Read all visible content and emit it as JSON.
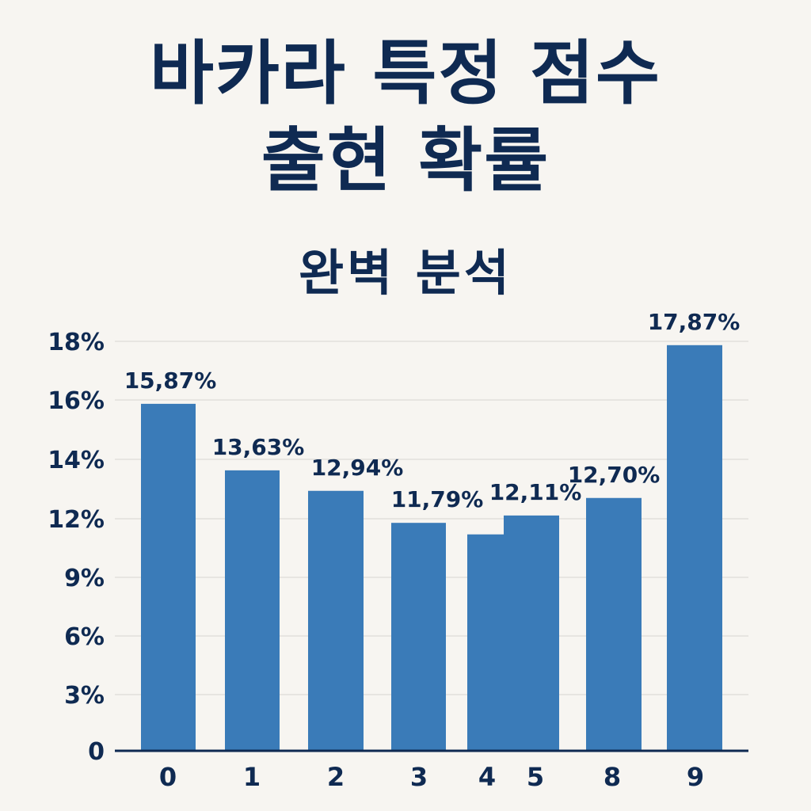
{
  "title": {
    "line1": "바카라 특정 점수",
    "line2": "출현 확률"
  },
  "subtitle": "완벽 분석",
  "colors": {
    "bar": "#3a7bb8",
    "text": "#0f2a52",
    "grid": "#e2e0dc",
    "axis": "#0f2a52",
    "background": "#f7f5f1"
  },
  "chart_data": {
    "type": "bar",
    "categories": [
      "0",
      "1",
      "2",
      "3",
      "4",
      "5",
      "8",
      "9"
    ],
    "values": [
      15.87,
      13.63,
      12.94,
      11.79,
      11.2,
      12.11,
      12.7,
      17.87
    ],
    "data_labels": [
      "15,87%",
      "13,63%",
      "12,94%",
      "11,79%",
      "",
      "12,11%",
      "12,70%",
      "17,87%"
    ],
    "y_ticks": [
      "0",
      "3%",
      "6%",
      "9%",
      "12%",
      "14%",
      "16%",
      "18%"
    ],
    "title": "",
    "xlabel": "",
    "ylabel": "",
    "grid": true,
    "legend": "none"
  }
}
